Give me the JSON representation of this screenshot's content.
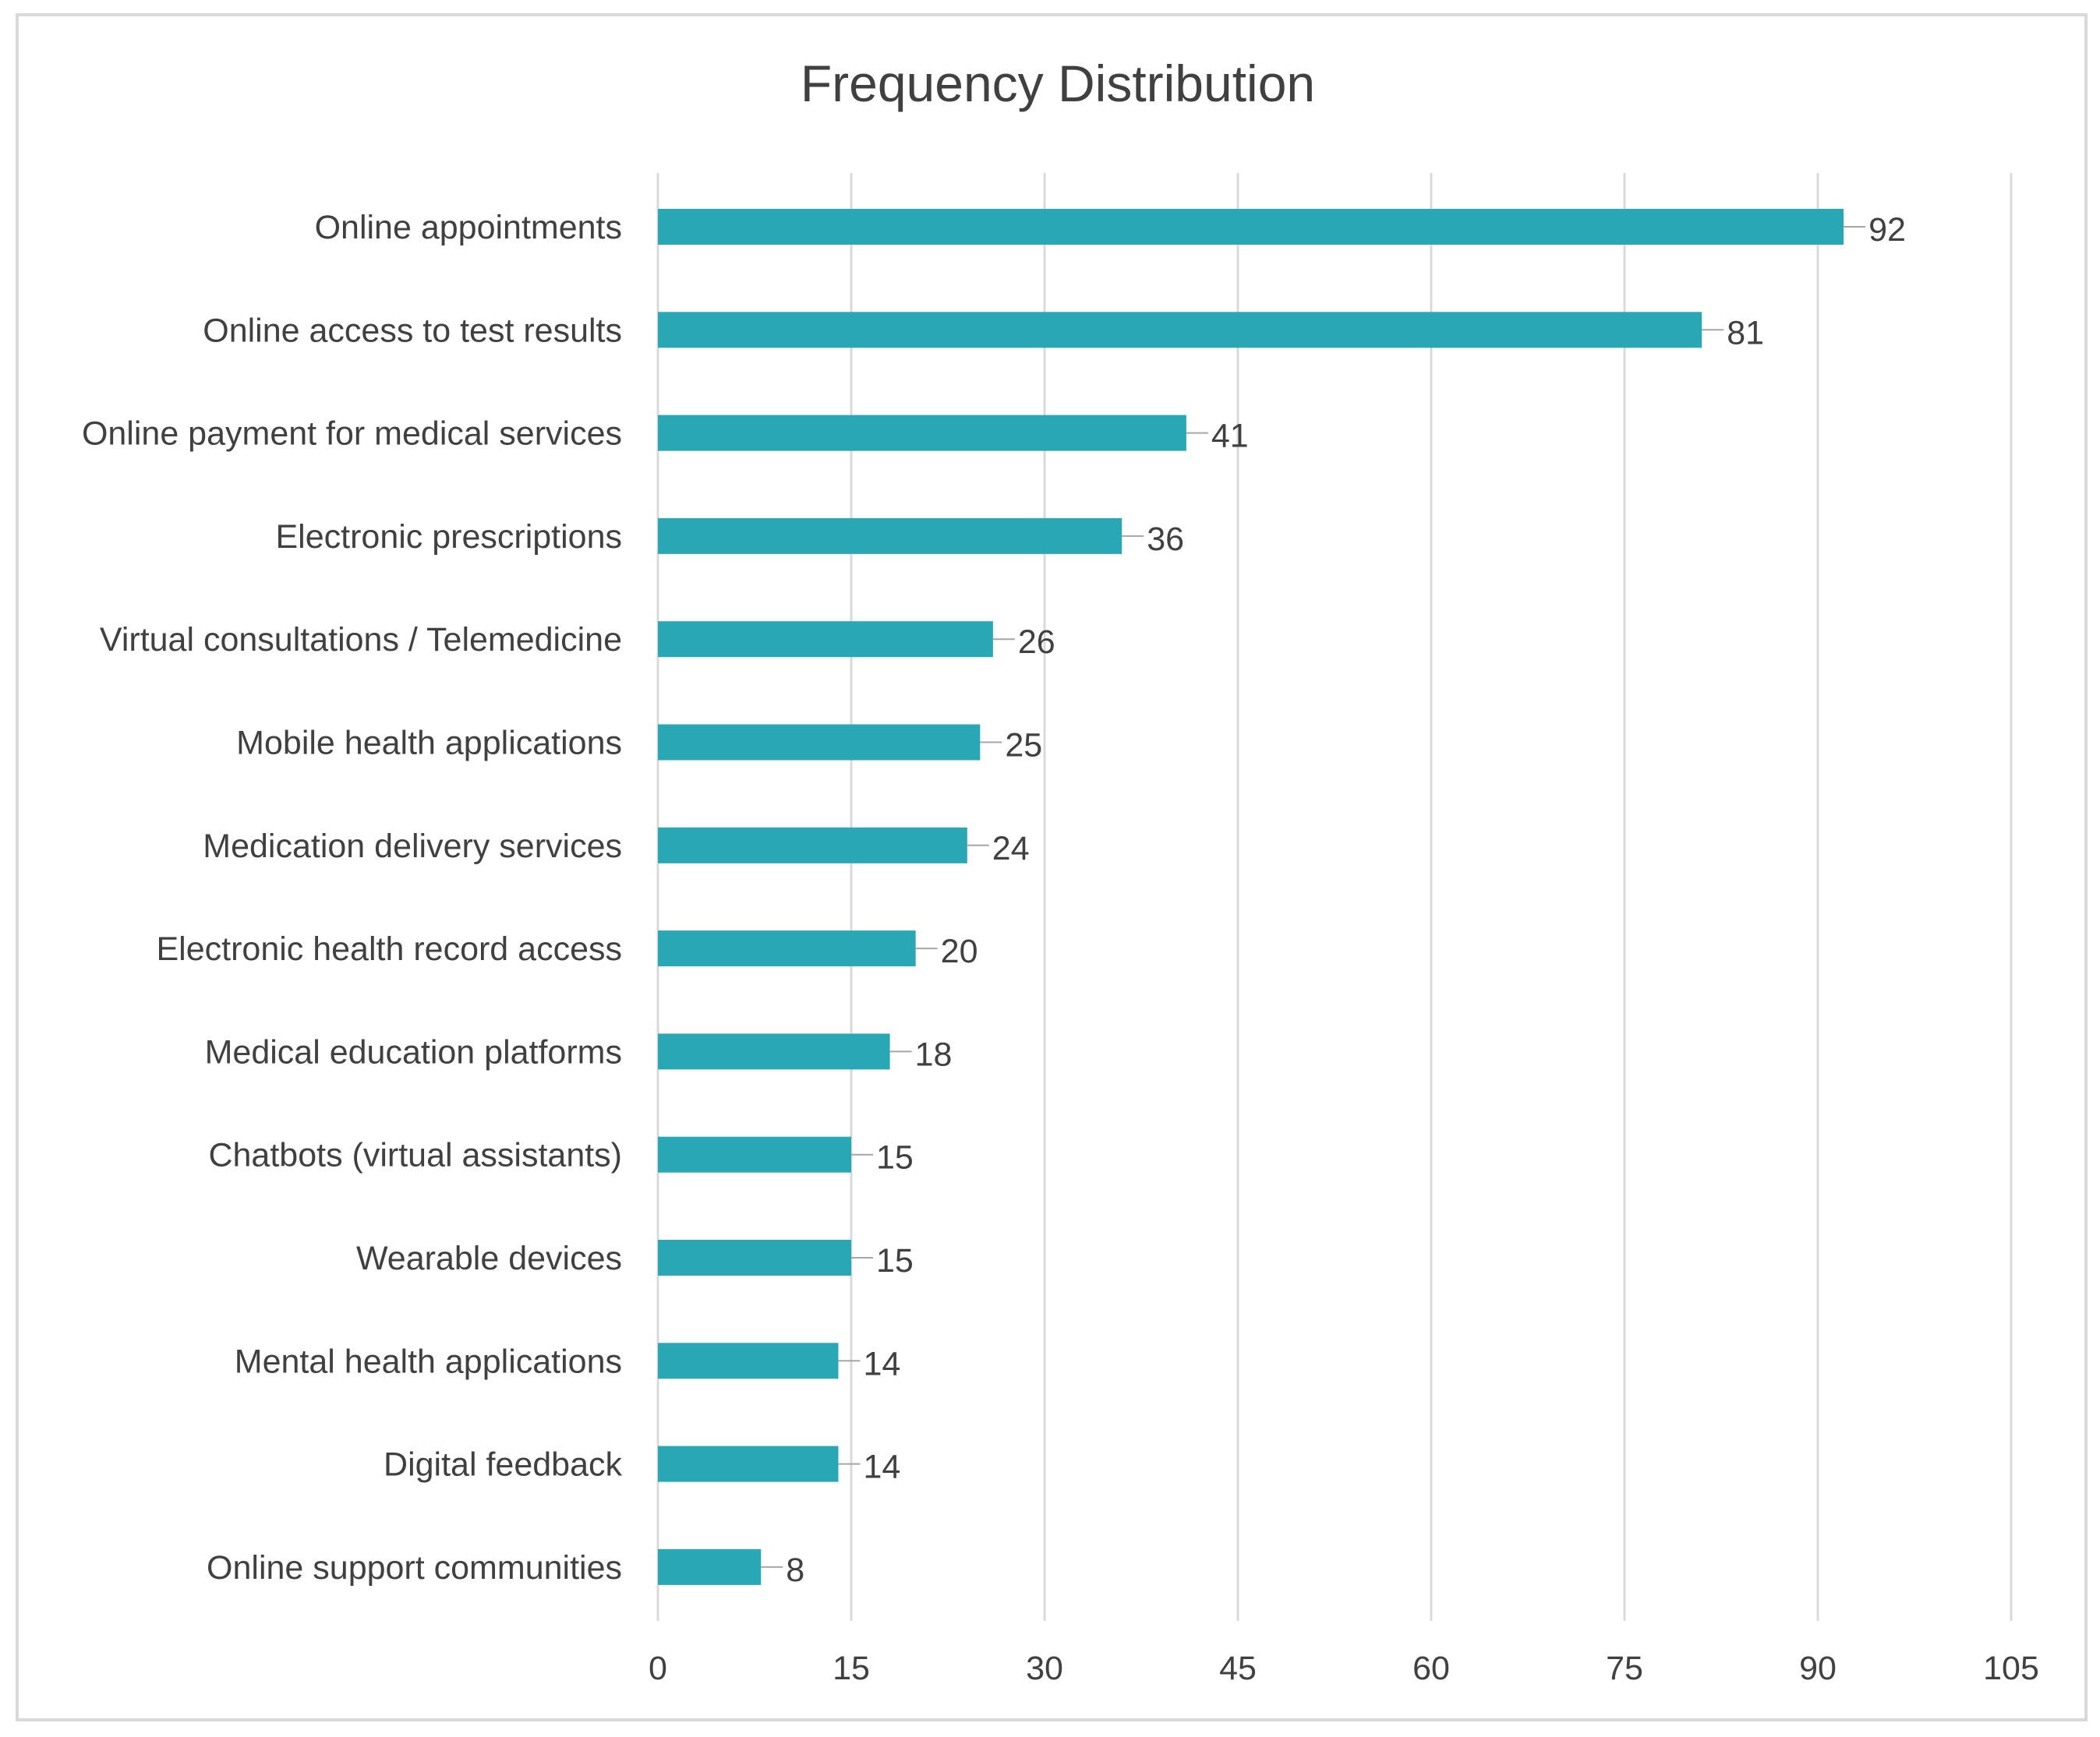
{
  "chart_data": {
    "type": "bar",
    "orientation": "horizontal",
    "title": "Frequency Distribution",
    "xlabel": "",
    "ylabel": "",
    "categories": [
      "Online appointments",
      "Online access to test results",
      "Online payment for medical services",
      "Electronic prescriptions",
      "Virtual consultations / Telemedicine",
      "Mobile health applications",
      "Medication delivery services",
      "Electronic health record access",
      "Medical education platforms",
      "Chatbots (virtual assistants)",
      "Wearable devices",
      "Mental health applications",
      "Digital feedback",
      "Online support communities"
    ],
    "values": [
      92,
      81,
      41,
      36,
      26,
      25,
      24,
      20,
      18,
      15,
      15,
      14,
      14,
      8
    ],
    "xlim": [
      0,
      105
    ],
    "xticks": [
      0,
      15,
      30,
      45,
      60,
      75,
      90,
      105
    ],
    "grid": true,
    "legend": "none",
    "bar_color": "#2aa7b5",
    "grid_color": "#d9d9d9",
    "text_color": "#404040"
  }
}
